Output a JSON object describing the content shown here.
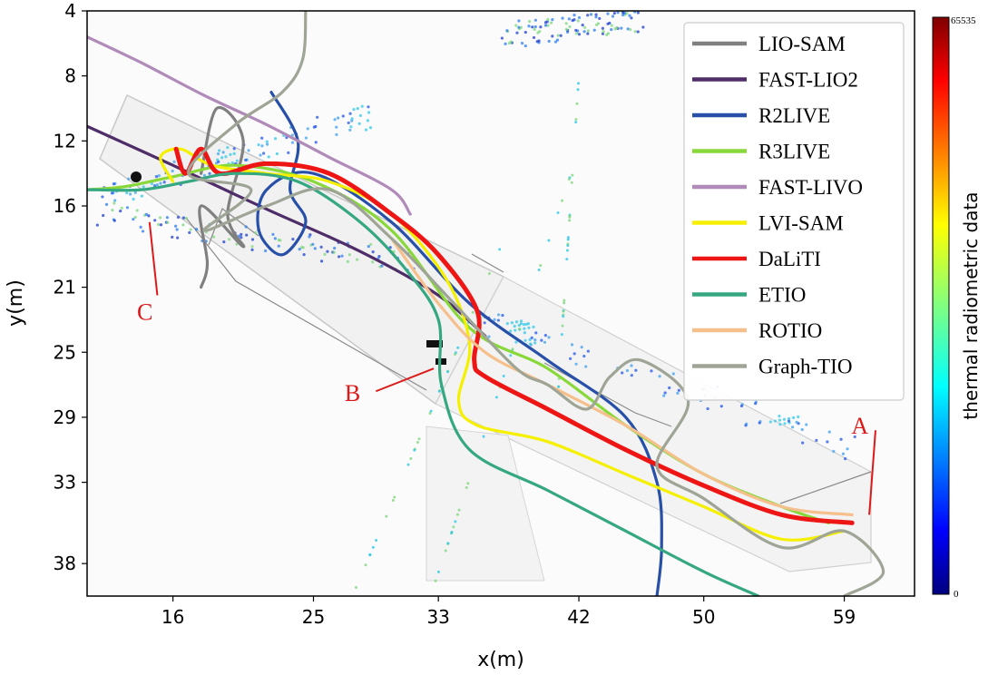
{
  "chart_data": {
    "type": "line",
    "xlabel": "x(m)",
    "ylabel": "y(m)",
    "xlim": [
      10.5,
      63.5
    ],
    "ylim": [
      40.0,
      4.0
    ],
    "y_inverted": true,
    "xticks": [
      16,
      25,
      33,
      42,
      50,
      59
    ],
    "yticks": [
      4,
      8,
      12,
      16,
      21,
      25,
      29,
      33,
      38
    ],
    "grid": false,
    "legend_position": "top-right",
    "series": [
      {
        "name": "LIO-SAM",
        "color": "#808080",
        "x": [
          17.8,
          18.8,
          20.5,
          19.5,
          20.5,
          17.8,
          18.2,
          17.8
        ],
        "y": [
          14.0,
          10.0,
          12.0,
          16.5,
          18.5,
          16.0,
          19.5,
          21.0
        ]
      },
      {
        "name": "FAST-LIO2",
        "color": "#4f2d68",
        "x": [
          10.5,
          16.0,
          22.0,
          28.0,
          33.0,
          36.0
        ],
        "y": [
          11.1,
          13.5,
          16.2,
          18.8,
          21.5,
          24.0
        ]
      },
      {
        "name": "R2LIVE",
        "color": "#2850a8",
        "x": [
          22.3,
          24.0,
          23.5,
          24.5,
          23.0,
          21.5,
          22.0,
          25.0,
          30.0,
          35.0,
          40.0,
          45.0,
          47.0,
          47.3,
          47.0
        ],
        "y": [
          9.0,
          12.0,
          15.0,
          17.0,
          19.0,
          17.5,
          15.0,
          14.0,
          17.0,
          22.0,
          25.5,
          29.0,
          33.0,
          37.0,
          40.0
        ]
      },
      {
        "name": "R3LIVE",
        "color": "#88d83a",
        "x": [
          10.5,
          13.0,
          16.0,
          20.0,
          25.0,
          30.0,
          35.0,
          40.0,
          45.0,
          50.0,
          55.0,
          58.0
        ],
        "y": [
          15.0,
          14.8,
          14.2,
          13.5,
          14.5,
          17.5,
          23.5,
          26.0,
          29.5,
          32.5,
          34.5,
          35.5
        ]
      },
      {
        "name": "FAST-LIVO",
        "color": "#b08ab8",
        "x": [
          10.5,
          14.0,
          18.0,
          22.0,
          26.0,
          30.0,
          31.2
        ],
        "y": [
          5.6,
          7.2,
          9.2,
          11.0,
          13.0,
          15.0,
          16.5
        ]
      },
      {
        "name": "LVI-SAM",
        "color": "#f5f000",
        "x": [
          16.0,
          15.2,
          16.5,
          18.5,
          22.0,
          26.0,
          30.0,
          33.5,
          35.0,
          34.3,
          35.5,
          40.0,
          45.0,
          50.0,
          55.0,
          59.0
        ],
        "y": [
          14.5,
          13.0,
          12.5,
          13.5,
          14.0,
          14.5,
          16.5,
          20.5,
          24.5,
          28.0,
          29.5,
          30.5,
          32.5,
          34.5,
          36.5,
          36.0
        ]
      },
      {
        "name": "DaLiTI",
        "color": "#ee1515",
        "x": [
          16.2,
          16.8,
          17.8,
          19.0,
          22.0,
          26.0,
          30.0,
          33.0,
          35.5,
          35.3,
          36.0,
          40.0,
          45.0,
          50.0,
          55.0,
          59.5
        ],
        "y": [
          12.5,
          14.0,
          12.5,
          14.0,
          13.4,
          14.0,
          16.5,
          19.0,
          22.5,
          25.5,
          26.5,
          28.5,
          31.0,
          33.2,
          35.0,
          35.5
        ]
      },
      {
        "name": "ETIO",
        "color": "#35a882",
        "x": [
          10.5,
          14.0,
          17.0,
          20.0,
          24.0,
          28.0,
          31.0,
          33.0,
          33.2,
          35.0,
          40.0,
          45.0,
          50.0,
          53.5
        ],
        "y": [
          15.0,
          15.0,
          14.5,
          14.0,
          14.5,
          17.0,
          20.0,
          23.0,
          27.0,
          31.0,
          33.5,
          36.0,
          38.5,
          40.0
        ]
      },
      {
        "name": "ROTIO",
        "color": "#f5c08c",
        "x": [
          30.0,
          33.0,
          36.0,
          40.0,
          45.0,
          50.0,
          55.0,
          59.5
        ],
        "y": [
          18.0,
          22.0,
          25.0,
          27.0,
          29.5,
          32.5,
          34.5,
          35.0
        ]
      },
      {
        "name": "Graph-TIO",
        "color": "#9fa596",
        "x": [
          24.5,
          24.3,
          23.0,
          20.0,
          17.0,
          21.0,
          18.0,
          22.0,
          26.0,
          30.0,
          34.0,
          38.0,
          40.0,
          42.5,
          44.0,
          46.0,
          49.0,
          47.0,
          50.0,
          55.0,
          59.0,
          61.5,
          59.0
        ],
        "y": [
          4.0,
          7.0,
          9.0,
          11.0,
          14.0,
          15.0,
          17.5,
          16.0,
          15.0,
          18.0,
          22.0,
          26.0,
          27.0,
          28.5,
          26.5,
          25.5,
          28.0,
          32.0,
          34.0,
          37.0,
          36.0,
          38.5,
          40.0
        ]
      }
    ],
    "annotations": [
      {
        "text": "A",
        "x": 60.0,
        "y": 29.5
      },
      {
        "text": "B",
        "x": 27.5,
        "y": 27.5
      },
      {
        "text": "C",
        "x": 14.2,
        "y": 22.5
      }
    ],
    "colorbar": {
      "label": "thermal radiometric data",
      "min_label": "0",
      "max_label": "65535"
    }
  }
}
